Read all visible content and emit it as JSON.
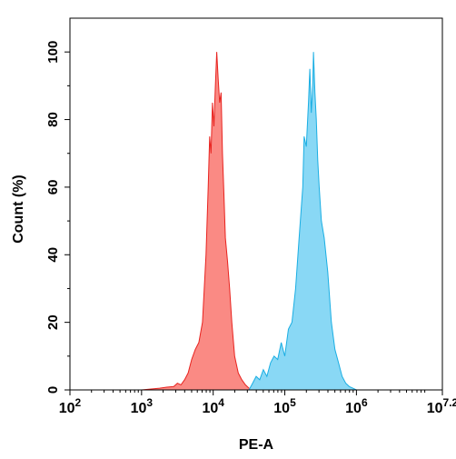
{
  "chart_data": {
    "type": "area",
    "title": "",
    "xlabel": "PE-A",
    "ylabel": "Count  (%)",
    "x_scale": "log10",
    "xlim": [
      100,
      15848932
    ],
    "ylim": [
      0,
      110
    ],
    "grid": false,
    "legend": "none",
    "x_ticks": [
      {
        "base": "10",
        "exp": "2",
        "value": 100
      },
      {
        "base": "10",
        "exp": "3",
        "value": 1000
      },
      {
        "base": "10",
        "exp": "4",
        "value": 10000
      },
      {
        "base": "10",
        "exp": "5",
        "value": 100000
      },
      {
        "base": "10",
        "exp": "6",
        "value": 1000000
      },
      {
        "base": "10",
        "exp": "7.2",
        "value": 15848932
      }
    ],
    "y_ticks": [
      "0",
      "20",
      "40",
      "60",
      "80",
      "100"
    ],
    "y_tick_values": [
      0,
      20,
      40,
      60,
      80,
      100
    ],
    "series": [
      {
        "color": "#e8231f",
        "fill": "#fa8a84",
        "x": [
          1000,
          1778,
          2239,
          2818,
          3162,
          3548,
          3981,
          4467,
          5012,
          5623,
          6310,
          7079,
          7943,
          8511,
          8913,
          9333,
          9772,
          10233,
          10715,
          11220,
          11749,
          12303,
          12883,
          13490,
          14125,
          14791,
          15849,
          16982,
          18197,
          19953,
          22387,
          25119,
          28184,
          31623,
          35481
        ],
        "y": [
          0,
          0.5,
          0.8,
          1,
          2,
          1.5,
          3,
          5,
          9,
          12,
          14,
          20,
          40,
          60,
          75,
          70,
          85,
          78,
          90,
          100,
          92,
          85,
          88,
          70,
          58,
          45,
          38,
          30,
          20,
          10,
          5,
          3,
          1.5,
          0.5,
          0
        ]
      },
      {
        "color": "#1aaee3",
        "fill": "#89d8f5",
        "x": [
          31623,
          35481,
          39811,
          44668,
          50119,
          56234,
          63096,
          70795,
          79433,
          89125,
          100000,
          112202,
          125893,
          141254,
          158489,
          177828,
          186209,
          199526,
          213796,
          223872,
          234423,
          245471,
          251189,
          263027,
          275423,
          288403,
          301995,
          323594,
          354813,
          398107,
          446684,
          501187,
          562341,
          630957,
          707946,
          794328,
          891251,
          1000000
        ],
        "y": [
          0,
          2,
          4,
          3,
          6,
          4,
          8,
          10,
          9,
          14,
          10,
          18,
          20,
          30,
          45,
          60,
          75,
          72,
          85,
          95,
          82,
          90,
          100,
          88,
          80,
          68,
          60,
          50,
          45,
          35,
          20,
          12,
          8,
          4,
          2,
          1,
          0.5,
          0
        ]
      }
    ]
  }
}
